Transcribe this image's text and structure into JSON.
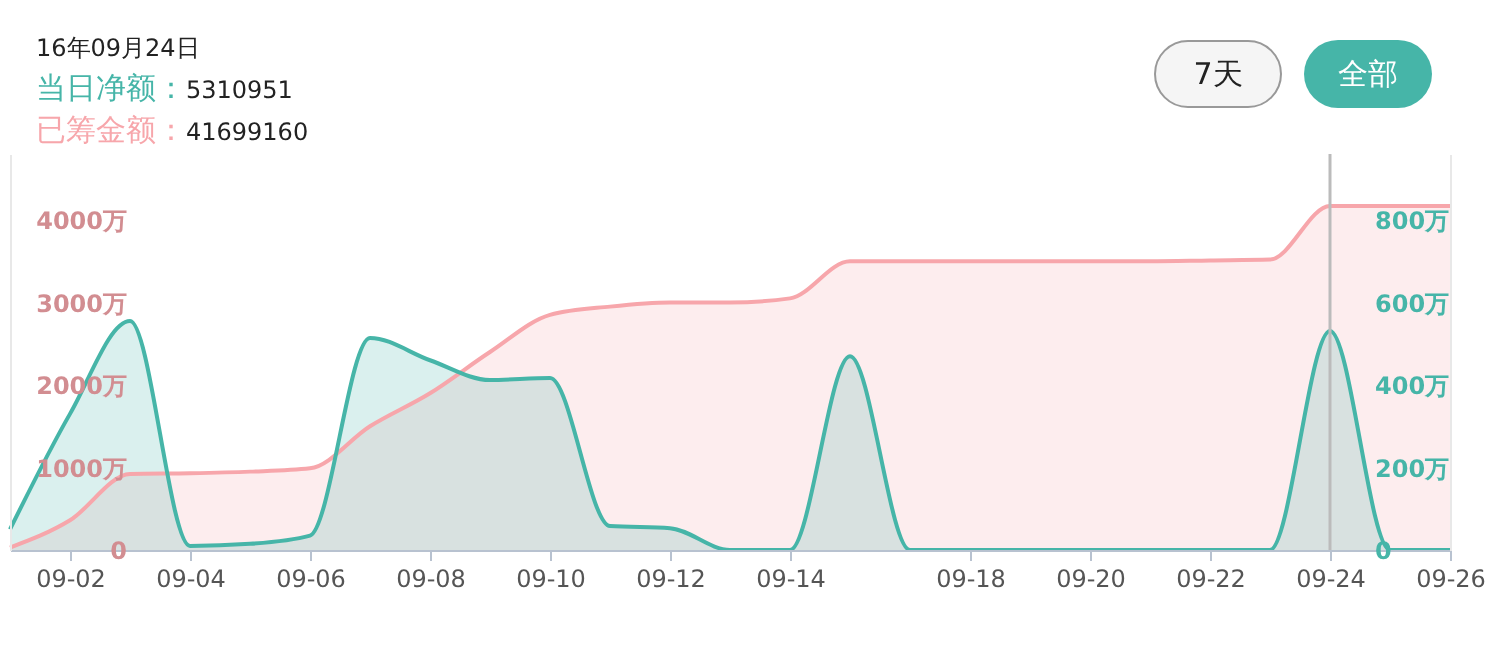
{
  "chart_data": {
    "type": "area",
    "title": "16年09月24日",
    "annotations": [
      "5310951",
      "41699160",
      "7天",
      "全部"
    ],
    "categories": [
      null,
      "09-02",
      null,
      "09-04",
      null,
      "09-06",
      null,
      "09-08",
      null,
      "09-10",
      null,
      "09-12",
      null,
      "09-14",
      null,
      null,
      "09-18",
      null,
      "09-20",
      null,
      "09-22",
      null,
      "09-24",
      null,
      "09-26"
    ],
    "series": [
      {
        "name": "已筹金额：",
        "color": "#f7a6ab",
        "values": [
          30,
          360,
          920,
          930,
          950,
          990,
          1500,
          1900,
          2400,
          2850,
          2950,
          3000,
          3000,
          3050,
          3500,
          3500,
          3500,
          3500,
          3500,
          3500,
          3510,
          3520,
          4170,
          4170,
          4170
        ]
      },
      {
        "name": "当日净额：",
        "color": "#46b5a8",
        "axis": "y2",
        "values": [
          50,
          330,
          555,
          10,
          15,
          35,
          514,
          460,
          412,
          417,
          58,
          53,
          0,
          0,
          470,
          0,
          0,
          0,
          0,
          0,
          0,
          0,
          531,
          0,
          0
        ]
      }
    ],
    "ylim": [
      0,
      4800
    ],
    "yticks": [
      {
        "value": 0,
        "label": "0"
      },
      {
        "value": 1000,
        "label": "1000万"
      },
      {
        "value": 2000,
        "label": "2000万"
      },
      {
        "value": 3000,
        "label": "3000万"
      },
      {
        "value": 4000,
        "label": "4000万"
      }
    ],
    "y2lim": [
      0,
      960
    ],
    "y2ticks": [
      {
        "value": 0,
        "label": "0"
      },
      {
        "value": 200,
        "label": "200万"
      },
      {
        "value": 400,
        "label": "400万"
      },
      {
        "value": 600,
        "label": "600万"
      },
      {
        "value": 800,
        "label": "800万"
      }
    ],
    "ref_lines": [
      {
        "axis": "x",
        "value": "09-24",
        "color": "#bbbbbb"
      }
    ],
    "grid": false,
    "legend": "top left"
  }
}
